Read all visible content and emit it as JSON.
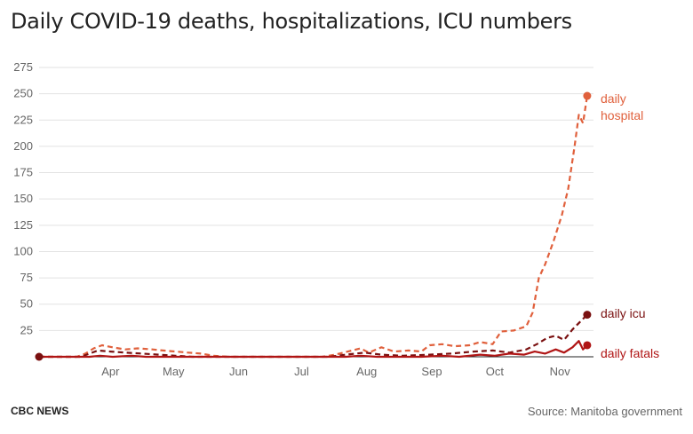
{
  "header": {
    "title": "Daily COVID-19 deaths, hospitalizations, ICU numbers"
  },
  "footer": {
    "brand": "CBC NEWS",
    "source": "Source: Manitoba government"
  },
  "chart_data": {
    "type": "line",
    "title": "Daily COVID-19 deaths, hospitalizations, ICU numbers",
    "xlabel": "",
    "ylabel": "",
    "ylim": [
      0,
      275
    ],
    "yticks": [
      25,
      50,
      75,
      100,
      125,
      150,
      175,
      200,
      225,
      250,
      275
    ],
    "xticks": [
      {
        "date": "2020-04-15",
        "label": "Apr"
      },
      {
        "date": "2020-05-15",
        "label": "May"
      },
      {
        "date": "2020-06-15",
        "label": "Jun"
      },
      {
        "date": "2020-07-15",
        "label": "Jul"
      },
      {
        "date": "2020-08-15",
        "label": "Aug"
      },
      {
        "date": "2020-09-15",
        "label": "Sep"
      },
      {
        "date": "2020-10-15",
        "label": "Oct"
      },
      {
        "date": "2020-11-15",
        "label": "Nov"
      }
    ],
    "xlim": [
      "2020-03-12",
      "2020-12-01"
    ],
    "grid": true,
    "series": [
      {
        "name": "daily hospital",
        "label_lines": [
          "daily",
          "hospital"
        ],
        "color": "#e0603c",
        "dash": "6,4",
        "points": [
          [
            "2020-03-12",
            0
          ],
          [
            "2020-03-30",
            0
          ],
          [
            "2020-04-03",
            3
          ],
          [
            "2020-04-07",
            8
          ],
          [
            "2020-04-11",
            11
          ],
          [
            "2020-04-16",
            9
          ],
          [
            "2020-04-22",
            7
          ],
          [
            "2020-04-28",
            8
          ],
          [
            "2020-05-05",
            7
          ],
          [
            "2020-05-10",
            6
          ],
          [
            "2020-05-16",
            5
          ],
          [
            "2020-05-22",
            4
          ],
          [
            "2020-05-28",
            3
          ],
          [
            "2020-06-03",
            1
          ],
          [
            "2020-06-10",
            0
          ],
          [
            "2020-07-25",
            0
          ],
          [
            "2020-07-31",
            2
          ],
          [
            "2020-08-06",
            5
          ],
          [
            "2020-08-12",
            8
          ],
          [
            "2020-08-16",
            4
          ],
          [
            "2020-08-22",
            9
          ],
          [
            "2020-08-28",
            5
          ],
          [
            "2020-09-04",
            6
          ],
          [
            "2020-09-10",
            5
          ],
          [
            "2020-09-14",
            11
          ],
          [
            "2020-09-20",
            12
          ],
          [
            "2020-09-26",
            10
          ],
          [
            "2020-10-03",
            11
          ],
          [
            "2020-10-08",
            14
          ],
          [
            "2020-10-14",
            12
          ],
          [
            "2020-10-18",
            24
          ],
          [
            "2020-10-24",
            25
          ],
          [
            "2020-10-30",
            29
          ],
          [
            "2020-11-02",
            42
          ],
          [
            "2020-11-05",
            75
          ],
          [
            "2020-11-08",
            88
          ],
          [
            "2020-11-12",
            110
          ],
          [
            "2020-11-16",
            135
          ],
          [
            "2020-11-19",
            160
          ],
          [
            "2020-11-22",
            200
          ],
          [
            "2020-11-24",
            230
          ],
          [
            "2020-11-26",
            222
          ],
          [
            "2020-11-28",
            248
          ]
        ]
      },
      {
        "name": "daily icu",
        "label_lines": [
          "daily icu"
        ],
        "color": "#7a1010",
        "dash": "6,4",
        "points": [
          [
            "2020-03-12",
            0
          ],
          [
            "2020-04-01",
            0
          ],
          [
            "2020-04-05",
            3
          ],
          [
            "2020-04-09",
            6
          ],
          [
            "2020-04-15",
            5
          ],
          [
            "2020-04-22",
            4
          ],
          [
            "2020-04-30",
            3
          ],
          [
            "2020-05-08",
            2
          ],
          [
            "2020-05-16",
            1
          ],
          [
            "2020-05-24",
            0
          ],
          [
            "2020-07-28",
            0
          ],
          [
            "2020-08-05",
            2
          ],
          [
            "2020-08-14",
            4
          ],
          [
            "2020-08-22",
            2
          ],
          [
            "2020-09-01",
            1
          ],
          [
            "2020-09-14",
            2
          ],
          [
            "2020-09-24",
            3
          ],
          [
            "2020-10-05",
            5
          ],
          [
            "2020-10-14",
            6
          ],
          [
            "2020-10-22",
            4
          ],
          [
            "2020-10-30",
            7
          ],
          [
            "2020-11-04",
            12
          ],
          [
            "2020-11-09",
            18
          ],
          [
            "2020-11-13",
            20
          ],
          [
            "2020-11-17",
            16
          ],
          [
            "2020-11-21",
            26
          ],
          [
            "2020-11-25",
            34
          ],
          [
            "2020-11-28",
            40
          ]
        ]
      },
      {
        "name": "daily fatals",
        "label_lines": [
          "daily fatals"
        ],
        "color": "#b01515",
        "dash": "",
        "points": [
          [
            "2020-03-12",
            0
          ],
          [
            "2020-04-05",
            0
          ],
          [
            "2020-04-10",
            1
          ],
          [
            "2020-04-16",
            0
          ],
          [
            "2020-04-25",
            1
          ],
          [
            "2020-05-02",
            0
          ],
          [
            "2020-08-05",
            0
          ],
          [
            "2020-08-12",
            1
          ],
          [
            "2020-08-20",
            0
          ],
          [
            "2020-09-10",
            0
          ],
          [
            "2020-09-20",
            1
          ],
          [
            "2020-09-28",
            0
          ],
          [
            "2020-10-08",
            2
          ],
          [
            "2020-10-15",
            1
          ],
          [
            "2020-10-22",
            3
          ],
          [
            "2020-10-29",
            2
          ],
          [
            "2020-11-03",
            5
          ],
          [
            "2020-11-08",
            3
          ],
          [
            "2020-11-13",
            7
          ],
          [
            "2020-11-17",
            4
          ],
          [
            "2020-11-21",
            9
          ],
          [
            "2020-11-24",
            15
          ],
          [
            "2020-11-26",
            7
          ],
          [
            "2020-11-28",
            11
          ]
        ]
      }
    ],
    "start_point": {
      "date": "2020-03-12",
      "value": 0,
      "color": "#7a1010"
    }
  }
}
